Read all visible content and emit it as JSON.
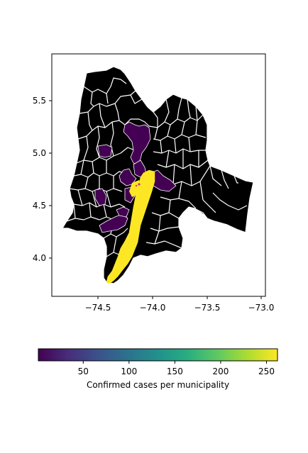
{
  "map": {
    "x_ticks": [
      "−74.5",
      "−74.0",
      "−73.5",
      "−73.0"
    ],
    "y_ticks": [
      "5.5",
      "5.0",
      "4.5",
      "4.0"
    ],
    "colormap": "viridis",
    "colors": {
      "base_municipalities": "#000000",
      "borders": "#ffffff",
      "low_cases": "#440154",
      "high_cases": "#fde725",
      "accent_dot": "#d0307a"
    }
  },
  "colorbar": {
    "label": "Confirmed cases per municipality",
    "ticks": [
      "50",
      "100",
      "150",
      "200",
      "250"
    ],
    "range": [
      1,
      262
    ]
  },
  "chart_data": {
    "type": "choropleth",
    "xlabel": "",
    "ylabel": "",
    "xlim": [
      -74.95,
      -72.95
    ],
    "ylim": [
      3.63,
      5.95
    ],
    "colorbar_label": "Confirmed cases per municipality",
    "colorbar_range": [
      1,
      262
    ]
  }
}
